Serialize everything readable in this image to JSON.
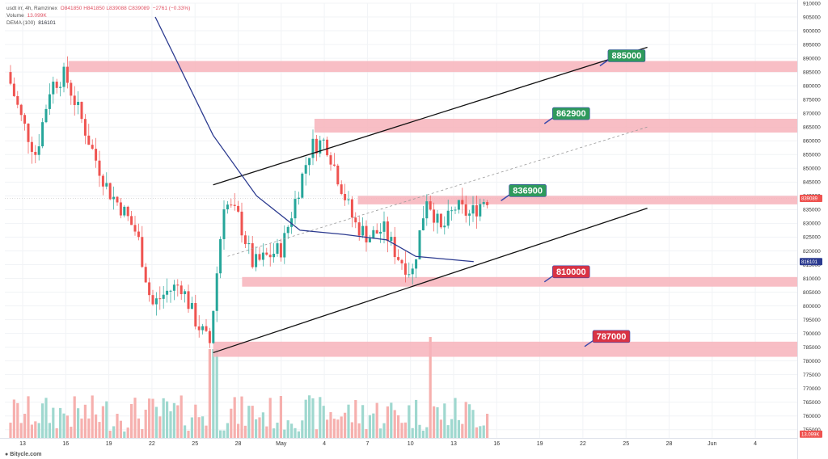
{
  "legend": {
    "title_line": "usdt irr, 4h, Ramzinex",
    "ohlc": "O841850 H841850 L839088 C839089",
    "change": "−2761 (−0.33%)",
    "volume_label": "Volume",
    "volume_value": "13.099K",
    "dema_label": "DEMA (100)",
    "dema_value": "816101"
  },
  "footer": {
    "logo": "Bitycle.com"
  },
  "colors": {
    "up": "#26a69a",
    "down": "#ef5350",
    "zone": "#f7b3bb",
    "dema": "#2b3a8f",
    "green_label": "#2e9a5c",
    "red_label": "#d93344"
  },
  "chart_data": {
    "type": "candlestick",
    "timeframe": "4h",
    "y_axis": {
      "min": 752000,
      "max": 910000,
      "ticks": [
        910000,
        905000,
        900000,
        895000,
        890000,
        885000,
        880000,
        875000,
        870000,
        865000,
        860000,
        855000,
        850000,
        845000,
        840000,
        835000,
        830000,
        825000,
        820000,
        815000,
        810000,
        805000,
        800000,
        795000,
        790000,
        785000,
        780000,
        775000,
        770000,
        765000,
        760000,
        755000
      ]
    },
    "x_axis": {
      "ticks": [
        "13",
        "16",
        "19",
        "22",
        "25",
        "28",
        "May",
        "4",
        "7",
        "10",
        "13",
        "16",
        "19",
        "22",
        "25",
        "28",
        "Jun",
        "4"
      ]
    },
    "price_badges": [
      {
        "value": "839089",
        "color": "#ef5350",
        "price": 839089
      },
      {
        "value": "816101",
        "color": "#2b3a8f",
        "price": 816101
      },
      {
        "value": "13.099K",
        "color": "#ef5350",
        "price": 752500
      }
    ],
    "resistance_support_zones": [
      {
        "low": 885000,
        "high": 889000,
        "label": "885000",
        "label_color": "green"
      },
      {
        "low": 863000,
        "high": 868000,
        "label": "862900",
        "label_color": "green"
      },
      {
        "low": 836900,
        "high": 840000,
        "label": "836900",
        "label_color": "green"
      },
      {
        "low": 807000,
        "high": 810500,
        "label": "810000",
        "label_color": "red"
      },
      {
        "low": 781500,
        "high": 787000,
        "label": "787000",
        "label_color": "red"
      }
    ],
    "channel": {
      "upper": [
        [
          "Apr 26",
          844000
        ],
        [
          "May 26",
          894000
        ]
      ],
      "lower": [
        [
          "Apr 26",
          783000
        ],
        [
          "May 26",
          835500
        ]
      ],
      "mid_dashed": [
        [
          "Apr 27",
          818000
        ],
        [
          "May 26",
          865000
        ]
      ]
    },
    "dema_100": [
      [
        "Apr 22",
        905000
      ],
      [
        "Apr 26",
        862000
      ],
      [
        "Apr 29",
        840000
      ],
      [
        "May 2",
        827500
      ],
      [
        "May 5",
        826000
      ],
      [
        "May 8",
        824000
      ],
      [
        "May 10",
        818000
      ],
      [
        "May 14",
        816101
      ]
    ],
    "price_path": [
      [
        "Apr 12",
        885000
      ],
      [
        "Apr 13",
        868000
      ],
      [
        "Apr 14",
        855000
      ],
      [
        "Apr 15",
        880000
      ],
      [
        "Apr 16",
        884000
      ],
      [
        "Apr 17",
        870000
      ],
      [
        "Apr 18",
        855000
      ],
      [
        "Apr 19",
        842000
      ],
      [
        "Apr 20",
        835000
      ],
      [
        "Apr 21",
        826000
      ],
      [
        "Apr 22",
        800000
      ],
      [
        "Apr 23",
        805000
      ],
      [
        "Apr 24",
        808000
      ],
      [
        "Apr 25",
        795000
      ],
      [
        "Apr 26",
        786000
      ],
      [
        "Apr 27",
        838000
      ],
      [
        "Apr 28",
        832000
      ],
      [
        "Apr 29",
        815000
      ],
      [
        "Apr 30",
        818000
      ],
      [
        "May 1",
        821000
      ],
      [
        "May 2",
        840000
      ],
      [
        "May 3",
        858000
      ],
      [
        "May 4",
        860000
      ],
      [
        "May 5",
        845000
      ],
      [
        "May 6",
        830000
      ],
      [
        "May 7",
        825000
      ],
      [
        "May 8",
        828000
      ],
      [
        "May 9",
        818000
      ],
      [
        "May 10",
        812000
      ],
      [
        "May 11",
        840000
      ],
      [
        "May 12",
        827000
      ],
      [
        "May 13",
        836000
      ],
      [
        "May 14",
        833000
      ],
      [
        "May 15",
        839089
      ]
    ],
    "volume_peak": 13099
  }
}
